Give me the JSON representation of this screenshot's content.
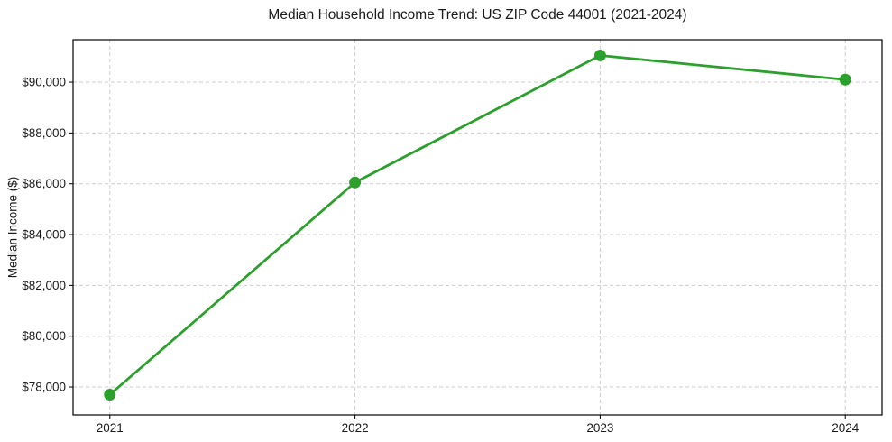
{
  "chart_data": {
    "type": "line",
    "title": "Median Household Income Trend: US ZIP Code 44001 (2021-2024)",
    "xlabel": "",
    "ylabel": "Median Income ($)",
    "x": [
      2021,
      2022,
      2023,
      2024
    ],
    "x_tick_labels": [
      "2021",
      "2022",
      "2023",
      "2024"
    ],
    "values": [
      77700,
      86050,
      91050,
      90100
    ],
    "y_ticks": [
      78000,
      80000,
      82000,
      84000,
      86000,
      88000,
      90000
    ],
    "y_tick_labels": [
      "$78,000",
      "$80,000",
      "$82,000",
      "$84,000",
      "$86,000",
      "$88,000",
      "$90,000"
    ],
    "xlim": [
      2020.85,
      2024.15
    ],
    "ylim": [
      76900,
      91670
    ],
    "grid": true,
    "grid_style": "dashed",
    "legend": "none",
    "line_color": "#2ca02c",
    "marker": "circle",
    "grid_color": "#cdcdcd",
    "spine_color": "#000000",
    "text_color": "#1a1a1a",
    "background": "#ffffff"
  }
}
